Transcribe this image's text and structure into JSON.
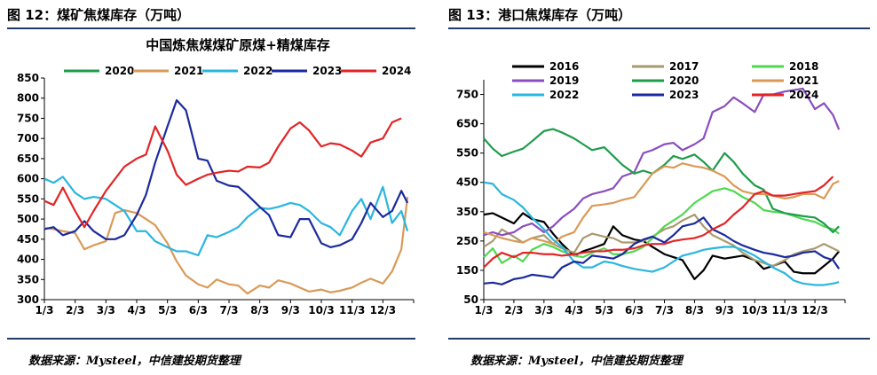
{
  "panels": [
    {
      "title": "图 12：煤矿焦煤库存（万吨）",
      "source": "数据来源：Mysteel，中信建投期货整理"
    },
    {
      "title": "图 13：港口焦煤库存（万吨）",
      "source": "数据来源：Mysteel，中信建投期货整理"
    }
  ],
  "chart_data": [
    {
      "type": "line",
      "title": "中国炼焦煤煤矿原煤+精煤库存",
      "xlabel": "",
      "ylabel": "",
      "categories": [
        "1/3",
        "2/3",
        "3/3",
        "4/3",
        "5/3",
        "6/3",
        "7/3",
        "8/3",
        "9/3",
        "10/3",
        "11/3",
        "12/3"
      ],
      "ylim": [
        300,
        850
      ],
      "yticks": [
        300,
        350,
        400,
        450,
        500,
        550,
        600,
        650,
        700,
        750,
        800,
        850
      ],
      "legend": "top",
      "grid": false,
      "series": [
        {
          "name": "2020",
          "color": "#1e9c4a",
          "x": [],
          "values": []
        },
        {
          "name": "2021",
          "color": "#d99a57",
          "x": [
            0,
            0.3,
            0.6,
            1,
            1.3,
            1.6,
            2,
            2.3,
            2.6,
            3,
            3.3,
            3.6,
            4,
            4.3,
            4.6,
            5,
            5.3,
            5.6,
            6,
            6.3,
            6.6,
            7,
            7.3,
            7.6,
            8,
            8.3,
            8.6,
            9,
            9.3,
            9.6,
            10,
            10.3,
            10.6,
            11,
            11.3,
            11.6,
            11.8
          ],
          "values": [
            478,
            475,
            470,
            465,
            425,
            435,
            445,
            515,
            522,
            515,
            500,
            485,
            440,
            395,
            360,
            338,
            330,
            350,
            338,
            335,
            315,
            335,
            330,
            348,
            340,
            330,
            320,
            325,
            318,
            322,
            330,
            342,
            352,
            340,
            370,
            425,
            555
          ]
        },
        {
          "name": "2022",
          "color": "#29b6e0",
          "x": [
            0,
            0.3,
            0.6,
            1,
            1.3,
            1.6,
            2,
            2.3,
            2.6,
            3,
            3.3,
            3.6,
            4,
            4.3,
            4.6,
            5,
            5.3,
            5.6,
            6,
            6.3,
            6.6,
            7,
            7.3,
            7.6,
            8,
            8.3,
            8.6,
            9,
            9.3,
            9.6,
            10,
            10.3,
            10.6,
            11,
            11.3,
            11.6,
            11.8
          ],
          "values": [
            600,
            590,
            605,
            565,
            550,
            555,
            550,
            535,
            520,
            470,
            470,
            445,
            430,
            420,
            420,
            410,
            460,
            455,
            468,
            480,
            505,
            528,
            525,
            530,
            540,
            535,
            520,
            490,
            480,
            460,
            520,
            550,
            500,
            580,
            490,
            520,
            470
          ]
        },
        {
          "name": "2023",
          "color": "#1b2a9e",
          "x": [
            0,
            0.3,
            0.6,
            1,
            1.3,
            1.6,
            2,
            2.3,
            2.6,
            3,
            3.3,
            3.6,
            4,
            4.3,
            4.6,
            5,
            5.3,
            5.6,
            6,
            6.3,
            6.6,
            7,
            7.3,
            7.6,
            8,
            8.3,
            8.6,
            9,
            9.3,
            9.6,
            10,
            10.3,
            10.6,
            11,
            11.3,
            11.6,
            11.8
          ],
          "values": [
            475,
            480,
            460,
            470,
            495,
            470,
            450,
            450,
            460,
            510,
            560,
            640,
            730,
            795,
            770,
            650,
            645,
            595,
            583,
            580,
            560,
            530,
            510,
            460,
            455,
            500,
            500,
            440,
            430,
            435,
            450,
            490,
            540,
            505,
            520,
            570,
            540
          ]
        },
        {
          "name": "2024",
          "color": "#e22426",
          "x": [
            0,
            0.3,
            0.6,
            1,
            1.3,
            1.6,
            2,
            2.3,
            2.6,
            3,
            3.3,
            3.6,
            4,
            4.3,
            4.6,
            5,
            5.3,
            5.6,
            6,
            6.3,
            6.6,
            7,
            7.3,
            7.6,
            8,
            8.3,
            8.6,
            9,
            9.3,
            9.6,
            10,
            10.3,
            10.6,
            11,
            11.3,
            11.6
          ],
          "values": [
            545,
            535,
            578,
            520,
            480,
            520,
            570,
            600,
            630,
            650,
            660,
            730,
            670,
            610,
            585,
            600,
            610,
            615,
            620,
            618,
            630,
            628,
            640,
            680,
            725,
            740,
            720,
            680,
            688,
            685,
            670,
            655,
            690,
            700,
            740,
            750
          ]
        }
      ]
    },
    {
      "type": "line",
      "title": "",
      "xlabel": "",
      "ylabel": "",
      "categories": [
        "1/3",
        "2/3",
        "3/3",
        "4/3",
        "5/3",
        "6/3",
        "7/3",
        "8/3",
        "9/3",
        "10/3",
        "11/3",
        "12/3"
      ],
      "ylim": [
        50,
        800
      ],
      "yticks": [
        50,
        150,
        250,
        350,
        450,
        550,
        650,
        750
      ],
      "legend": "top",
      "grid": false,
      "series": [
        {
          "name": "2016",
          "color": "#000000",
          "x": [
            0,
            0.3,
            0.6,
            1,
            1.3,
            1.6,
            2,
            2.3,
            2.6,
            3,
            3.3,
            3.6,
            4,
            4.3,
            4.6,
            5,
            5.3,
            5.6,
            6,
            6.3,
            6.6,
            7,
            7.3,
            7.6,
            8,
            8.3,
            8.6,
            9,
            9.3,
            9.6,
            10,
            10.3,
            10.6,
            11,
            11.3,
            11.6,
            11.8
          ],
          "values": [
            340,
            345,
            330,
            310,
            345,
            325,
            315,
            275,
            240,
            200,
            215,
            225,
            240,
            300,
            270,
            255,
            250,
            230,
            205,
            195,
            185,
            120,
            150,
            200,
            190,
            195,
            200,
            185,
            155,
            165,
            180,
            145,
            140,
            140,
            165,
            190,
            215
          ]
        },
        {
          "name": "2017",
          "color": "#a99a6e",
          "x": [
            0,
            0.3,
            0.6,
            1,
            1.3,
            1.6,
            2,
            2.3,
            2.6,
            3,
            3.3,
            3.6,
            4,
            4.3,
            4.6,
            5,
            5.3,
            5.6,
            6,
            6.3,
            6.6,
            7,
            7.3,
            7.6,
            8,
            8.3,
            8.6,
            9,
            9.3,
            9.6,
            10,
            10.3,
            10.6,
            11,
            11.3,
            11.6,
            11.8
          ],
          "values": [
            230,
            250,
            290,
            265,
            245,
            260,
            270,
            240,
            225,
            210,
            260,
            275,
            265,
            260,
            245,
            245,
            250,
            265,
            290,
            300,
            320,
            340,
            300,
            270,
            250,
            235,
            210,
            185,
            175,
            165,
            185,
            205,
            215,
            225,
            240,
            225,
            215
          ]
        },
        {
          "name": "2018",
          "color": "#4fd84f",
          "x": [
            0,
            0.3,
            0.6,
            1,
            1.3,
            1.6,
            2,
            2.3,
            2.6,
            3,
            3.3,
            3.6,
            4,
            4.3,
            4.6,
            5,
            5.3,
            5.6,
            6,
            6.3,
            6.6,
            7,
            7.3,
            7.6,
            8,
            8.3,
            8.6,
            9,
            9.3,
            9.6,
            10,
            10.3,
            10.6,
            11,
            11.3,
            11.6,
            11.8
          ],
          "values": [
            195,
            225,
            175,
            200,
            180,
            220,
            240,
            230,
            215,
            200,
            195,
            210,
            225,
            205,
            205,
            215,
            230,
            260,
            300,
            320,
            340,
            380,
            400,
            420,
            430,
            420,
            400,
            380,
            355,
            350,
            345,
            335,
            325,
            315,
            300,
            290,
            275
          ]
        },
        {
          "name": "2019",
          "color": "#8a4ec0",
          "x": [
            0,
            0.3,
            0.6,
            1,
            1.3,
            1.6,
            2,
            2.3,
            2.6,
            3,
            3.3,
            3.6,
            4,
            4.3,
            4.6,
            5,
            5.3,
            5.6,
            6,
            6.3,
            6.6,
            7,
            7.3,
            7.6,
            8,
            8.3,
            8.6,
            9,
            9.3,
            9.6,
            10,
            10.3,
            10.6,
            11,
            11.3,
            11.6,
            11.8
          ],
          "values": [
            270,
            280,
            270,
            280,
            300,
            310,
            280,
            300,
            330,
            360,
            395,
            410,
            420,
            430,
            470,
            485,
            550,
            560,
            580,
            585,
            560,
            580,
            600,
            690,
            710,
            740,
            720,
            690,
            750,
            750,
            760,
            765,
            770,
            700,
            720,
            680,
            630
          ]
        },
        {
          "name": "2020",
          "color": "#1e9c4a",
          "x": [
            0,
            0.3,
            0.6,
            1,
            1.3,
            1.6,
            2,
            2.3,
            2.6,
            3,
            3.3,
            3.6,
            4,
            4.3,
            4.6,
            5,
            5.3,
            5.6,
            6,
            6.3,
            6.6,
            7,
            7.3,
            7.6,
            8,
            8.3,
            8.6,
            9,
            9.3,
            9.6,
            10,
            10.3,
            10.6,
            11,
            11.3,
            11.6,
            11.8
          ],
          "values": [
            600,
            565,
            540,
            555,
            565,
            590,
            625,
            632,
            620,
            600,
            580,
            560,
            570,
            540,
            510,
            480,
            490,
            480,
            510,
            540,
            530,
            545,
            520,
            490,
            550,
            520,
            480,
            440,
            425,
            360,
            345,
            340,
            335,
            330,
            310,
            280,
            300
          ]
        },
        {
          "name": "2021",
          "color": "#d99a57",
          "x": [
            0,
            0.3,
            0.6,
            1,
            1.3,
            1.6,
            2,
            2.3,
            2.6,
            3,
            3.3,
            3.6,
            4,
            4.3,
            4.6,
            5,
            5.3,
            5.6,
            6,
            6.3,
            6.6,
            7,
            7.3,
            7.6,
            8,
            8.3,
            8.6,
            9,
            9.3,
            9.6,
            10,
            10.3,
            10.6,
            11,
            11.3,
            11.6,
            11.8
          ],
          "values": [
            280,
            270,
            260,
            250,
            245,
            260,
            250,
            240,
            265,
            280,
            330,
            370,
            375,
            380,
            390,
            400,
            440,
            480,
            505,
            500,
            515,
            505,
            500,
            490,
            470,
            440,
            420,
            410,
            410,
            405,
            395,
            400,
            410,
            410,
            395,
            445,
            455
          ]
        },
        {
          "name": "2022",
          "color": "#29b6e0",
          "x": [
            0,
            0.3,
            0.6,
            1,
            1.3,
            1.6,
            2,
            2.3,
            2.6,
            3,
            3.3,
            3.6,
            4,
            4.3,
            4.6,
            5,
            5.3,
            5.6,
            6,
            6.3,
            6.6,
            7,
            7.3,
            7.6,
            8,
            8.3,
            8.6,
            9,
            9.3,
            9.6,
            10,
            10.3,
            10.6,
            11,
            11.3,
            11.6,
            11.8
          ],
          "values": [
            450,
            445,
            410,
            390,
            365,
            330,
            290,
            255,
            230,
            180,
            160,
            160,
            180,
            175,
            165,
            155,
            150,
            145,
            160,
            180,
            200,
            210,
            220,
            225,
            230,
            230,
            220,
            200,
            180,
            160,
            140,
            115,
            105,
            100,
            100,
            105,
            110
          ]
        },
        {
          "name": "2023",
          "color": "#1b2a9e",
          "x": [
            0,
            0.3,
            0.6,
            1,
            1.3,
            1.6,
            2,
            2.3,
            2.6,
            3,
            3.3,
            3.6,
            4,
            4.3,
            4.6,
            5,
            5.3,
            5.6,
            6,
            6.3,
            6.6,
            7,
            7.3,
            7.6,
            8,
            8.3,
            8.6,
            9,
            9.3,
            9.6,
            10,
            10.3,
            10.6,
            11,
            11.3,
            11.6,
            11.8
          ],
          "values": [
            105,
            108,
            102,
            120,
            125,
            135,
            130,
            125,
            160,
            180,
            175,
            200,
            195,
            190,
            205,
            240,
            255,
            265,
            245,
            270,
            300,
            310,
            330,
            290,
            270,
            250,
            235,
            220,
            210,
            205,
            195,
            200,
            210,
            215,
            195,
            185,
            155
          ]
        },
        {
          "name": "2024",
          "color": "#e22426",
          "x": [
            0,
            0.3,
            0.6,
            1,
            1.3,
            1.6,
            2,
            2.3,
            2.6,
            3,
            3.3,
            3.6,
            4,
            4.3,
            4.6,
            5,
            5.3,
            5.6,
            6,
            6.3,
            6.6,
            7,
            7.3,
            7.6,
            8,
            8.3,
            8.6,
            9,
            9.3,
            9.6,
            10,
            10.3,
            10.6,
            11,
            11.3,
            11.6
          ],
          "values": [
            160,
            190,
            210,
            195,
            210,
            210,
            205,
            205,
            200,
            205,
            210,
            215,
            215,
            220,
            220,
            225,
            235,
            240,
            240,
            250,
            255,
            260,
            270,
            290,
            310,
            340,
            365,
            410,
            420,
            405,
            405,
            410,
            415,
            420,
            440,
            470
          ]
        }
      ]
    }
  ]
}
